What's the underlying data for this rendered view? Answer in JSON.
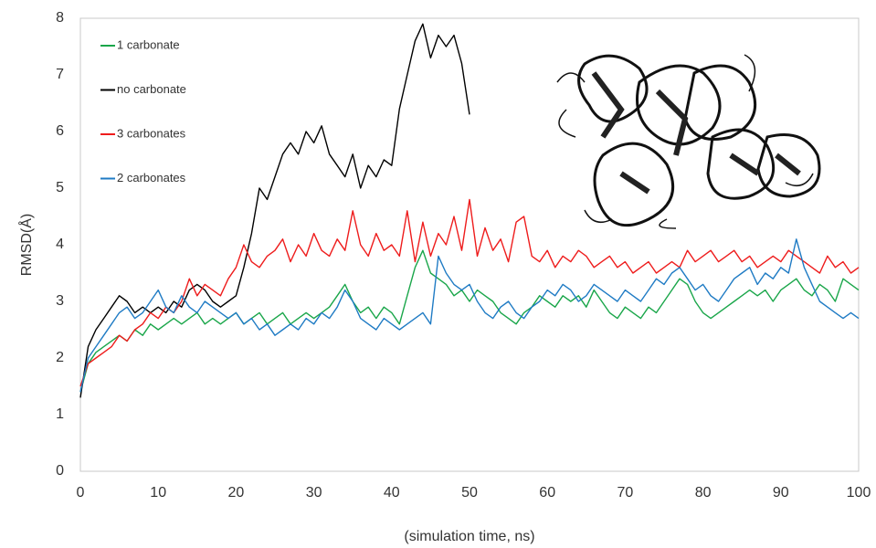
{
  "chart_data": {
    "type": "line",
    "xlabel": "(simulation time, ns)",
    "ylabel": "RMSD(Å)",
    "x": [
      0,
      1,
      2,
      3,
      4,
      5,
      6,
      7,
      8,
      9,
      10,
      11,
      12,
      13,
      14,
      15,
      16,
      17,
      18,
      19,
      20,
      21,
      22,
      23,
      24,
      25,
      26,
      27,
      28,
      29,
      30,
      31,
      32,
      33,
      34,
      35,
      36,
      37,
      38,
      39,
      40,
      41,
      42,
      43,
      44,
      45,
      46,
      47,
      48,
      49,
      50,
      51,
      52,
      53,
      54,
      55,
      56,
      57,
      58,
      59,
      60,
      61,
      62,
      63,
      64,
      65,
      66,
      67,
      68,
      69,
      70,
      71,
      72,
      73,
      74,
      75,
      76,
      77,
      78,
      79,
      80,
      81,
      82,
      83,
      84,
      85,
      86,
      87,
      88,
      89,
      90,
      91,
      92,
      93,
      94,
      95,
      96,
      97,
      98,
      99,
      100
    ],
    "series": [
      {
        "name": "1 carbonate",
        "color": "#1aa64a",
        "values": [
          1.4,
          1.9,
          2.1,
          2.2,
          2.3,
          2.4,
          2.3,
          2.5,
          2.4,
          2.6,
          2.5,
          2.6,
          2.7,
          2.6,
          2.7,
          2.8,
          2.6,
          2.7,
          2.6,
          2.7,
          2.8,
          2.6,
          2.7,
          2.8,
          2.6,
          2.7,
          2.8,
          2.6,
          2.7,
          2.8,
          2.7,
          2.8,
          2.9,
          3.1,
          3.3,
          3.0,
          2.8,
          2.9,
          2.7,
          2.9,
          2.8,
          2.6,
          3.1,
          3.6,
          3.9,
          3.5,
          3.4,
          3.3,
          3.1,
          3.2,
          3.0,
          3.2,
          3.1,
          3.0,
          2.8,
          2.7,
          2.6,
          2.8,
          2.9,
          3.1,
          3.0,
          2.9,
          3.1,
          3.0,
          3.1,
          2.9,
          3.2,
          3.0,
          2.8,
          2.7,
          2.9,
          2.8,
          2.7,
          2.9,
          2.8,
          3.0,
          3.2,
          3.4,
          3.3,
          3.0,
          2.8,
          2.7,
          2.8,
          2.9,
          3.0,
          3.1,
          3.2,
          3.1,
          3.2,
          3.0,
          3.2,
          3.3,
          3.4,
          3.2,
          3.1,
          3.3,
          3.2,
          3.0,
          3.4,
          3.3,
          3.2
        ]
      },
      {
        "name": "no carbonate",
        "color": "#000000",
        "values": [
          1.3,
          2.2,
          2.5,
          2.7,
          2.9,
          3.1,
          3.0,
          2.8,
          2.9,
          2.8,
          2.9,
          2.8,
          3.0,
          2.9,
          3.2,
          3.3,
          3.2,
          3.0,
          2.9,
          3.0,
          3.1,
          3.6,
          4.2,
          5.0,
          4.8,
          5.2,
          5.6,
          5.8,
          5.6,
          6.0,
          5.8,
          6.1,
          5.6,
          5.4,
          5.2,
          5.6,
          5.0,
          5.4,
          5.2,
          5.5,
          5.4,
          6.4,
          7.0,
          7.6,
          7.9,
          7.3,
          7.7,
          7.5,
          7.7,
          7.2,
          6.3,
          null,
          null,
          null,
          null,
          null,
          null,
          null,
          null,
          null,
          null,
          null,
          null,
          null,
          null,
          null,
          null,
          null,
          null,
          null,
          null,
          null,
          null,
          null,
          null,
          null,
          null,
          null,
          null,
          null,
          null,
          null,
          null,
          null,
          null,
          null,
          null,
          null,
          null,
          null,
          null,
          null,
          null,
          null,
          null,
          null,
          null,
          null,
          null,
          null,
          null
        ]
      },
      {
        "name": "3 carbonates",
        "color": "#ee1c1c",
        "values": [
          1.5,
          1.9,
          2.0,
          2.1,
          2.2,
          2.4,
          2.3,
          2.5,
          2.6,
          2.8,
          2.7,
          2.9,
          2.8,
          3.0,
          3.4,
          3.1,
          3.3,
          3.2,
          3.1,
          3.4,
          3.6,
          4.0,
          3.7,
          3.6,
          3.8,
          3.9,
          4.1,
          3.7,
          4.0,
          3.8,
          4.2,
          3.9,
          3.8,
          4.1,
          3.9,
          4.6,
          4.0,
          3.8,
          4.2,
          3.9,
          4.0,
          3.8,
          4.6,
          3.7,
          4.4,
          3.8,
          4.2,
          4.0,
          4.5,
          3.9,
          4.8,
          3.8,
          4.3,
          3.9,
          4.1,
          3.7,
          4.4,
          4.5,
          3.8,
          3.7,
          3.9,
          3.6,
          3.8,
          3.7,
          3.9,
          3.8,
          3.6,
          3.7,
          3.8,
          3.6,
          3.7,
          3.5,
          3.6,
          3.7,
          3.5,
          3.6,
          3.7,
          3.6,
          3.9,
          3.7,
          3.8,
          3.9,
          3.7,
          3.8,
          3.9,
          3.7,
          3.8,
          3.6,
          3.7,
          3.8,
          3.7,
          3.9,
          3.8,
          3.7,
          3.6,
          3.5,
          3.8,
          3.6,
          3.7,
          3.5,
          3.6
        ]
      },
      {
        "name": "2 carbonates",
        "color": "#1f7bc4",
        "values": [
          1.4,
          2.0,
          2.2,
          2.4,
          2.6,
          2.8,
          2.9,
          2.7,
          2.8,
          3.0,
          3.2,
          2.9,
          2.8,
          3.1,
          2.9,
          2.8,
          3.0,
          2.9,
          2.8,
          2.7,
          2.8,
          2.6,
          2.7,
          2.5,
          2.6,
          2.4,
          2.5,
          2.6,
          2.5,
          2.7,
          2.6,
          2.8,
          2.7,
          2.9,
          3.2,
          3.0,
          2.7,
          2.6,
          2.5,
          2.7,
          2.6,
          2.5,
          2.6,
          2.7,
          2.8,
          2.6,
          3.8,
          3.5,
          3.3,
          3.2,
          3.3,
          3.0,
          2.8,
          2.7,
          2.9,
          3.0,
          2.8,
          2.7,
          2.9,
          3.0,
          3.2,
          3.1,
          3.3,
          3.2,
          3.0,
          3.1,
          3.3,
          3.2,
          3.1,
          3.0,
          3.2,
          3.1,
          3.0,
          3.2,
          3.4,
          3.3,
          3.5,
          3.6,
          3.4,
          3.2,
          3.3,
          3.1,
          3.0,
          3.2,
          3.4,
          3.5,
          3.6,
          3.3,
          3.5,
          3.4,
          3.6,
          3.5,
          4.1,
          3.6,
          3.3,
          3.0,
          2.9,
          2.8,
          2.7,
          2.8,
          2.7
        ]
      }
    ],
    "xlim": [
      0,
      100
    ],
    "xticks": [
      0,
      10,
      20,
      30,
      40,
      50,
      60,
      70,
      80,
      90,
      100
    ],
    "ylim": [
      0,
      8
    ],
    "yticks": [
      0,
      1,
      2,
      3,
      4,
      5,
      6,
      7,
      8
    ],
    "grid": false
  }
}
